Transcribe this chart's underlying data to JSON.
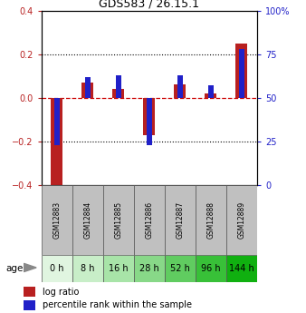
{
  "title": "GDS583 / 26.15.1",
  "samples": [
    "GSM12883",
    "GSM12884",
    "GSM12885",
    "GSM12886",
    "GSM12887",
    "GSM12888",
    "GSM12889"
  ],
  "ages": [
    "0 h",
    "8 h",
    "16 h",
    "28 h",
    "52 h",
    "96 h",
    "144 h"
  ],
  "log_ratios": [
    -0.42,
    0.07,
    0.04,
    -0.17,
    0.06,
    0.02,
    0.25
  ],
  "percentile_ranks": [
    23,
    62,
    63,
    23,
    63,
    57,
    78
  ],
  "ylim_left": [
    -0.4,
    0.4
  ],
  "ylim_right": [
    0,
    100
  ],
  "left_ticks": [
    -0.4,
    -0.2,
    0.0,
    0.2,
    0.4
  ],
  "right_ticks": [
    0,
    25,
    50,
    75,
    100
  ],
  "log_ratio_color": "#b82020",
  "percentile_color": "#2020c8",
  "zero_line_color": "#cc0000",
  "dotted_line_color": "#000000",
  "sample_box_color": "#c0c0c0",
  "age_colors": [
    "#e0f5e0",
    "#c8eec8",
    "#a8e4a8",
    "#88d888",
    "#60cc60",
    "#38c038",
    "#10b010"
  ],
  "legend_log_ratio": "log ratio",
  "legend_percentile": "percentile rank within the sample",
  "age_label": "age"
}
